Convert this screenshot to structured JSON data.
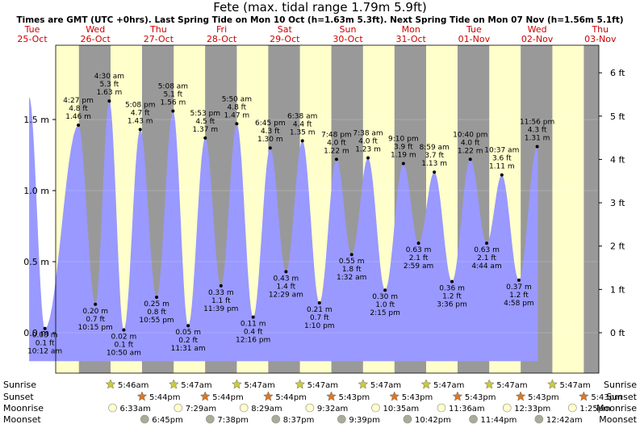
{
  "page": {
    "title": "Fete (max. tidal range 1.79m 5.9ft)",
    "subtitle": "Times are GMT (UTC +0hrs). Last Spring Tide on Mon 10 Oct (h=1.63m 5.3ft). Next Spring Tide on Mon 07 Nov (h=1.56m 5.1ft)"
  },
  "colors": {
    "day": "#ffffcc",
    "night": "#999999",
    "water": "#9999ff",
    "day_label": "#cc0000"
  },
  "chart_data": {
    "type": "area",
    "title": "Fete (max. tidal range 1.79m 5.9ft)",
    "x_range_days": [
      "Tue 25-Oct",
      "Thu 03-Nov"
    ],
    "y_left": {
      "unit": "m",
      "range": [
        -0.25,
        1.9
      ],
      "ticks": [
        {
          "v": 0,
          "label": "0.0 m"
        },
        {
          "v": 0.5,
          "label": "0.5 m"
        },
        {
          "v": 1.0,
          "label": "1.0 m"
        },
        {
          "v": 1.5,
          "label": "1.5 m"
        }
      ]
    },
    "y_right": {
      "unit": "ft",
      "ticks": [
        "0 ft",
        "1 ft",
        "2 ft",
        "3 ft",
        "4 ft",
        "5 ft",
        "6 ft"
      ]
    },
    "days": [
      {
        "dow": "Tue",
        "date": "25-Oct"
      },
      {
        "dow": "Wed",
        "date": "26-Oct"
      },
      {
        "dow": "Thu",
        "date": "27-Oct"
      },
      {
        "dow": "Fri",
        "date": "28-Oct"
      },
      {
        "dow": "Sat",
        "date": "29-Oct"
      },
      {
        "dow": "Sun",
        "date": "30-Oct"
      },
      {
        "dow": "Mon",
        "date": "31-Oct"
      },
      {
        "dow": "Tue",
        "date": "01-Nov"
      },
      {
        "dow": "Wed",
        "date": "02-Nov"
      },
      {
        "dow": "Thu",
        "date": "03-Nov"
      }
    ],
    "tides": [
      {
        "day": 0.2,
        "m": 0.03,
        "time": "10:12 am",
        "ft": "0.1 ft",
        "height": "0.03 m",
        "type": "low"
      },
      {
        "day": 0.73,
        "m": 1.46,
        "time": "4:27 pm",
        "ft": "4.8 ft",
        "height": "1.46 m",
        "type": "high"
      },
      {
        "day": 1.0,
        "m": 0.2,
        "time": "10:15 pm",
        "ft": "0.7 ft",
        "height": "0.20 m",
        "type": "low"
      },
      {
        "day": 1.22,
        "m": 1.63,
        "time": "4:30 am",
        "ft": "5.3 ft",
        "height": "1.63 m",
        "type": "high"
      },
      {
        "day": 1.45,
        "m": 0.02,
        "time": "10:50 am",
        "ft": "0.1 ft",
        "height": "0.02 m",
        "type": "low"
      },
      {
        "day": 1.71,
        "m": 1.43,
        "time": "5:08 pm",
        "ft": "4.7 ft",
        "height": "1.43 m",
        "type": "high"
      },
      {
        "day": 1.97,
        "m": 0.25,
        "time": "10:55 pm",
        "ft": "0.8 ft",
        "height": "0.25 m",
        "type": "low"
      },
      {
        "day": 2.23,
        "m": 1.56,
        "time": "5:08 am",
        "ft": "5.1 ft",
        "height": "1.56 m",
        "type": "high"
      },
      {
        "day": 2.47,
        "m": 0.05,
        "time": "11:31 am",
        "ft": "0.2 ft",
        "height": "0.05 m",
        "type": "low"
      },
      {
        "day": 2.74,
        "m": 1.37,
        "time": "5:53 pm",
        "ft": "4.5 ft",
        "height": "1.37 m",
        "type": "high"
      },
      {
        "day": 2.99,
        "m": 0.33,
        "time": "11:39 pm",
        "ft": "1.1 ft",
        "height": "0.33 m",
        "type": "low"
      },
      {
        "day": 3.24,
        "m": 1.47,
        "time": "5:50 am",
        "ft": "4.8 ft",
        "height": "1.47 m",
        "type": "high"
      },
      {
        "day": 3.5,
        "m": 0.11,
        "time": "12:16 pm",
        "ft": "0.4 ft",
        "height": "0.11 m",
        "type": "low"
      },
      {
        "day": 3.77,
        "m": 1.3,
        "time": "6:45 pm",
        "ft": "4.3 ft",
        "height": "1.30 m",
        "type": "high"
      },
      {
        "day": 4.02,
        "m": 0.43,
        "time": "12:29 am",
        "ft": "1.4 ft",
        "height": "0.43 m",
        "type": "low"
      },
      {
        "day": 4.28,
        "m": 1.35,
        "time": "6:38 am",
        "ft": "4.4 ft",
        "height": "1.35 m",
        "type": "high"
      },
      {
        "day": 4.55,
        "m": 0.21,
        "time": "1:10 pm",
        "ft": "0.7 ft",
        "height": "0.21 m",
        "type": "low"
      },
      {
        "day": 4.82,
        "m": 1.22,
        "time": "7:48 pm",
        "ft": "4.0 ft",
        "height": "1.22 m",
        "type": "high"
      },
      {
        "day": 5.06,
        "m": 0.55,
        "time": "1:32 am",
        "ft": "1.8 ft",
        "height": "0.55 m",
        "type": "low"
      },
      {
        "day": 5.32,
        "m": 1.23,
        "time": "7:38 am",
        "ft": "4.0 ft",
        "height": "1.23 m",
        "type": "high"
      },
      {
        "day": 5.59,
        "m": 0.3,
        "time": "2:15 pm",
        "ft": "1.0 ft",
        "height": "0.30 m",
        "type": "low"
      },
      {
        "day": 5.88,
        "m": 1.19,
        "time": "9:10 pm",
        "ft": "3.9 ft",
        "height": "1.19 m",
        "type": "high"
      },
      {
        "day": 6.12,
        "m": 0.63,
        "time": "2:59 am",
        "ft": "2.1 ft",
        "height": "0.63 m",
        "type": "low"
      },
      {
        "day": 6.37,
        "m": 1.13,
        "time": "8:59 am",
        "ft": "3.7 ft",
        "height": "1.13 m",
        "type": "high"
      },
      {
        "day": 6.65,
        "m": 0.36,
        "time": "3:36 pm",
        "ft": "1.2 ft",
        "height": "0.36 m",
        "type": "low"
      },
      {
        "day": 6.94,
        "m": 1.22,
        "time": "10:40 pm",
        "ft": "4.0 ft",
        "height": "1.22 m",
        "type": "high"
      },
      {
        "day": 7.2,
        "m": 0.63,
        "time": "4:44 am",
        "ft": "2.1 ft",
        "height": "0.63 m",
        "type": "low"
      },
      {
        "day": 7.44,
        "m": 1.11,
        "time": "10:37 am",
        "ft": "3.6 ft",
        "height": "1.11 m",
        "type": "high"
      },
      {
        "day": 7.71,
        "m": 0.37,
        "time": "4:58 pm",
        "ft": "1.2 ft",
        "height": "0.37 m",
        "type": "low"
      },
      {
        "day": 8.0,
        "m": 1.31,
        "time": "11:56 pm",
        "ft": "4.3 ft",
        "height": "1.31 m",
        "type": "high"
      }
    ],
    "sunrise": [
      "5:46am",
      "5:47am",
      "5:47am",
      "5:47am",
      "5:47am",
      "5:47am",
      "5:47am",
      "5:47am"
    ],
    "sunset": [
      "5:44pm",
      "5:44pm",
      "5:44pm",
      "5:43pm",
      "5:43pm",
      "5:43pm",
      "5:43pm",
      "5:43pm"
    ],
    "moonrise": [
      "6:33am",
      "7:29am",
      "8:29am",
      "9:32am",
      "10:35am",
      "11:36am",
      "12:33pm",
      "1:25pm"
    ],
    "moonset": [
      "6:45pm",
      "7:38pm",
      "8:37pm",
      "9:39pm",
      "10:42pm",
      "11:44pm",
      "12:42am"
    ],
    "row_labels": {
      "sunrise": "Sunrise",
      "sunset": "Sunset",
      "moonrise": "Moonrise",
      "moonset": "Moonset"
    }
  }
}
